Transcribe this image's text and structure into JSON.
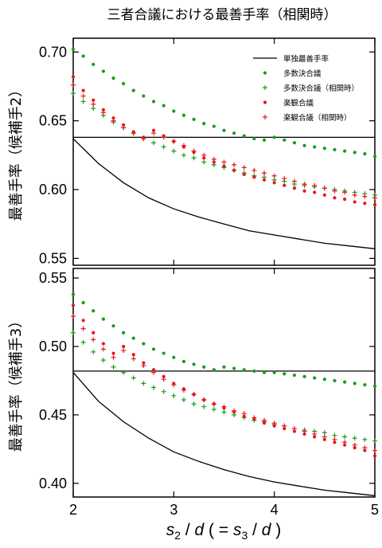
{
  "title": "三者合議における最善手率（相関時）",
  "xlabel": {
    "s": "s",
    "sub2": "2",
    "slash_d1": " / ",
    "d1": "d",
    "open": "  ( = ",
    "s3": "s",
    "sub3": "3",
    "slash_d2": " / ",
    "d2": "d",
    "close": " )"
  },
  "colors": {
    "green": "#1a9a1a",
    "red": "#e8161b",
    "black": "#000000"
  },
  "legend": [
    {
      "label": "単独最善手率",
      "marker": "line",
      "color": "#000000"
    },
    {
      "label": "多数決合議",
      "marker": "dot",
      "color": "#1a9a1a"
    },
    {
      "label": "多数決合議（相関時）",
      "marker": "plus",
      "color": "#1a9a1a"
    },
    {
      "label": "楽観合議",
      "marker": "dot",
      "color": "#e8161b"
    },
    {
      "label": "楽観合議（相関時）",
      "marker": "plus",
      "color": "#e8161b"
    }
  ],
  "chart_data": [
    {
      "type": "scatter",
      "ylabel": "最善手率（候補手2）",
      "xlim": [
        2,
        5
      ],
      "ylim": [
        0.545,
        0.71
      ],
      "xticks": [
        "2",
        "3",
        "4",
        "5"
      ],
      "yticks": [
        "0.55",
        "0.60",
        "0.65",
        "0.70"
      ],
      "ytick_values": [
        0.55,
        0.6,
        0.65,
        0.7
      ],
      "series": [
        {
          "name": "単独最善手率",
          "kind": "curve",
          "color": "#000000",
          "x": [
            2.0,
            2.25,
            2.5,
            2.75,
            3.0,
            3.25,
            3.5,
            3.75,
            4.0,
            4.25,
            4.5,
            4.75,
            5.0
          ],
          "y": [
            0.637,
            0.619,
            0.605,
            0.594,
            0.586,
            0.58,
            0.575,
            0.57,
            0.567,
            0.564,
            0.561,
            0.559,
            0.557
          ]
        },
        {
          "name": "",
          "kind": "hline",
          "color": "#000000",
          "y": 0.638
        },
        {
          "name": "多数決合議",
          "kind": "dot",
          "color": "#1a9a1a",
          "x": [
            2.0,
            2.1,
            2.2,
            2.3,
            2.4,
            2.5,
            2.6,
            2.7,
            2.8,
            2.9,
            3.0,
            3.1,
            3.2,
            3.3,
            3.4,
            3.5,
            3.6,
            3.7,
            3.8,
            3.9,
            4.0,
            4.1,
            4.2,
            4.3,
            4.4,
            4.5,
            4.6,
            4.7,
            4.8,
            4.9,
            5.0
          ],
          "y": [
            0.702,
            0.697,
            0.691,
            0.686,
            0.681,
            0.677,
            0.672,
            0.668,
            0.664,
            0.661,
            0.657,
            0.654,
            0.651,
            0.648,
            0.646,
            0.643,
            0.641,
            0.639,
            0.637,
            0.636,
            0.638,
            0.636,
            0.634,
            0.632,
            0.631,
            0.63,
            0.629,
            0.628,
            0.627,
            0.626,
            0.624
          ]
        },
        {
          "name": "多数決合議（相関時）",
          "kind": "plus",
          "color": "#1a9a1a",
          "x": [
            2.0,
            2.1,
            2.2,
            2.3,
            2.4,
            2.5,
            2.6,
            2.7,
            2.8,
            2.9,
            3.0,
            3.1,
            3.2,
            3.3,
            3.4,
            3.5,
            3.6,
            3.7,
            3.8,
            3.9,
            4.0,
            4.1,
            4.2,
            4.3,
            4.4,
            4.5,
            4.6,
            4.7,
            4.8,
            4.9,
            5.0
          ],
          "y": [
            0.67,
            0.664,
            0.659,
            0.654,
            0.649,
            0.645,
            0.641,
            0.637,
            0.634,
            0.631,
            0.628,
            0.625,
            0.623,
            0.62,
            0.618,
            0.616,
            0.614,
            0.612,
            0.61,
            0.609,
            0.607,
            0.606,
            0.604,
            0.603,
            0.602,
            0.601,
            0.6,
            0.599,
            0.598,
            0.597,
            0.596
          ]
        },
        {
          "name": "楽観合議",
          "kind": "dot",
          "color": "#e8161b",
          "x": [
            2.0,
            2.1,
            2.2,
            2.3,
            2.4,
            2.5,
            2.6,
            2.7,
            2.8,
            2.9,
            3.0,
            3.1,
            3.2,
            3.3,
            3.4,
            3.5,
            3.6,
            3.7,
            3.8,
            3.9,
            4.0,
            4.1,
            4.2,
            4.3,
            4.4,
            4.5,
            4.6,
            4.7,
            4.8,
            4.9,
            5.0
          ],
          "y": [
            0.682,
            0.672,
            0.665,
            0.658,
            0.652,
            0.647,
            0.642,
            0.638,
            0.643,
            0.639,
            0.635,
            0.631,
            0.627,
            0.623,
            0.62,
            0.617,
            0.614,
            0.611,
            0.609,
            0.607,
            0.605,
            0.603,
            0.601,
            0.599,
            0.598,
            0.596,
            0.594,
            0.593,
            0.591,
            0.59,
            0.589
          ]
        },
        {
          "name": "楽観合議（相関時）",
          "kind": "plus",
          "color": "#e8161b",
          "x": [
            2.0,
            2.1,
            2.2,
            2.3,
            2.4,
            2.5,
            2.6,
            2.7,
            2.8,
            2.9,
            3.0,
            3.1,
            3.2,
            3.3,
            3.4,
            3.5,
            3.6,
            3.7,
            3.8,
            3.9,
            4.0,
            4.1,
            4.2,
            4.3,
            4.4,
            4.5,
            4.6,
            4.7,
            4.8,
            4.9,
            5.0
          ],
          "y": [
            0.676,
            0.668,
            0.662,
            0.656,
            0.65,
            0.645,
            0.641,
            0.637,
            0.641,
            0.638,
            0.635,
            0.632,
            0.628,
            0.625,
            0.622,
            0.62,
            0.618,
            0.616,
            0.614,
            0.612,
            0.61,
            0.608,
            0.606,
            0.604,
            0.603,
            0.601,
            0.599,
            0.598,
            0.596,
            0.595,
            0.594
          ]
        }
      ]
    },
    {
      "type": "scatter",
      "ylabel": "最善手率（候補手3）",
      "xlim": [
        2,
        5
      ],
      "ylim": [
        0.39,
        0.557
      ],
      "xticks": [
        "2",
        "3",
        "4",
        "5"
      ],
      "yticks": [
        "0.40",
        "0.45",
        "0.50",
        "0.55"
      ],
      "ytick_values": [
        0.4,
        0.45,
        0.5,
        0.55
      ],
      "series": [
        {
          "name": "単独最善手率",
          "kind": "curve",
          "color": "#000000",
          "x": [
            2.0,
            2.25,
            2.5,
            2.75,
            3.0,
            3.25,
            3.5,
            3.75,
            4.0,
            4.25,
            4.5,
            4.75,
            5.0
          ],
          "y": [
            0.481,
            0.46,
            0.445,
            0.433,
            0.423,
            0.416,
            0.41,
            0.405,
            0.401,
            0.398,
            0.395,
            0.393,
            0.391
          ]
        },
        {
          "name": "",
          "kind": "hline",
          "color": "#000000",
          "y": 0.482
        },
        {
          "name": "多数決合議",
          "kind": "dot",
          "color": "#1a9a1a",
          "x": [
            2.0,
            2.1,
            2.2,
            2.3,
            2.4,
            2.5,
            2.6,
            2.7,
            2.8,
            2.9,
            3.0,
            3.1,
            3.2,
            3.3,
            3.4,
            3.5,
            3.6,
            3.7,
            3.8,
            3.9,
            4.0,
            4.1,
            4.2,
            4.3,
            4.4,
            4.5,
            4.6,
            4.7,
            4.8,
            4.9,
            5.0
          ],
          "y": [
            0.538,
            0.532,
            0.526,
            0.52,
            0.515,
            0.51,
            0.506,
            0.502,
            0.498,
            0.495,
            0.492,
            0.489,
            0.487,
            0.485,
            0.483,
            0.485,
            0.484,
            0.483,
            0.482,
            0.481,
            0.481,
            0.48,
            0.479,
            0.478,
            0.477,
            0.476,
            0.475,
            0.474,
            0.473,
            0.472,
            0.471
          ]
        },
        {
          "name": "多数決合議（相関時）",
          "kind": "plus",
          "color": "#1a9a1a",
          "x": [
            2.0,
            2.1,
            2.2,
            2.3,
            2.4,
            2.5,
            2.6,
            2.7,
            2.8,
            2.9,
            3.0,
            3.1,
            3.2,
            3.3,
            3.4,
            3.5,
            3.6,
            3.7,
            3.8,
            3.9,
            4.0,
            4.1,
            4.2,
            4.3,
            4.4,
            4.5,
            4.6,
            4.7,
            4.8,
            4.9,
            5.0
          ],
          "y": [
            0.51,
            0.503,
            0.496,
            0.49,
            0.485,
            0.481,
            0.477,
            0.473,
            0.47,
            0.467,
            0.464,
            0.461,
            0.458,
            0.456,
            0.454,
            0.452,
            0.45,
            0.448,
            0.446,
            0.445,
            0.443,
            0.442,
            0.44,
            0.439,
            0.438,
            0.437,
            0.435,
            0.434,
            0.433,
            0.432,
            0.431
          ]
        },
        {
          "name": "楽観合議",
          "kind": "dot",
          "color": "#e8161b",
          "x": [
            2.0,
            2.1,
            2.2,
            2.3,
            2.4,
            2.5,
            2.6,
            2.7,
            2.8,
            2.9,
            3.0,
            3.1,
            3.2,
            3.3,
            3.4,
            3.5,
            3.6,
            3.7,
            3.8,
            3.9,
            4.0,
            4.1,
            4.2,
            4.3,
            4.4,
            4.5,
            4.6,
            4.7,
            4.8,
            4.9,
            5.0
          ],
          "y": [
            0.53,
            0.519,
            0.51,
            0.502,
            0.495,
            0.5,
            0.494,
            0.488,
            0.483,
            0.478,
            0.473,
            0.469,
            0.465,
            0.461,
            0.458,
            0.455,
            0.452,
            0.449,
            0.447,
            0.444,
            0.442,
            0.44,
            0.438,
            0.436,
            0.434,
            0.432,
            0.43,
            0.428,
            0.426,
            0.424,
            0.42
          ]
        },
        {
          "name": "楽観合議（相関時）",
          "kind": "plus",
          "color": "#e8161b",
          "x": [
            2.0,
            2.1,
            2.2,
            2.3,
            2.4,
            2.5,
            2.6,
            2.7,
            2.8,
            2.9,
            3.0,
            3.1,
            3.2,
            3.3,
            3.4,
            3.5,
            3.6,
            3.7,
            3.8,
            3.9,
            4.0,
            4.1,
            4.2,
            4.3,
            4.4,
            4.5,
            4.6,
            4.7,
            4.8,
            4.9,
            5.0
          ],
          "y": [
            0.522,
            0.513,
            0.505,
            0.498,
            0.492,
            0.497,
            0.491,
            0.486,
            0.481,
            0.476,
            0.472,
            0.468,
            0.465,
            0.461,
            0.458,
            0.456,
            0.453,
            0.451,
            0.448,
            0.446,
            0.444,
            0.442,
            0.44,
            0.438,
            0.436,
            0.434,
            0.432,
            0.43,
            0.428,
            0.426,
            0.424
          ]
        }
      ]
    }
  ]
}
